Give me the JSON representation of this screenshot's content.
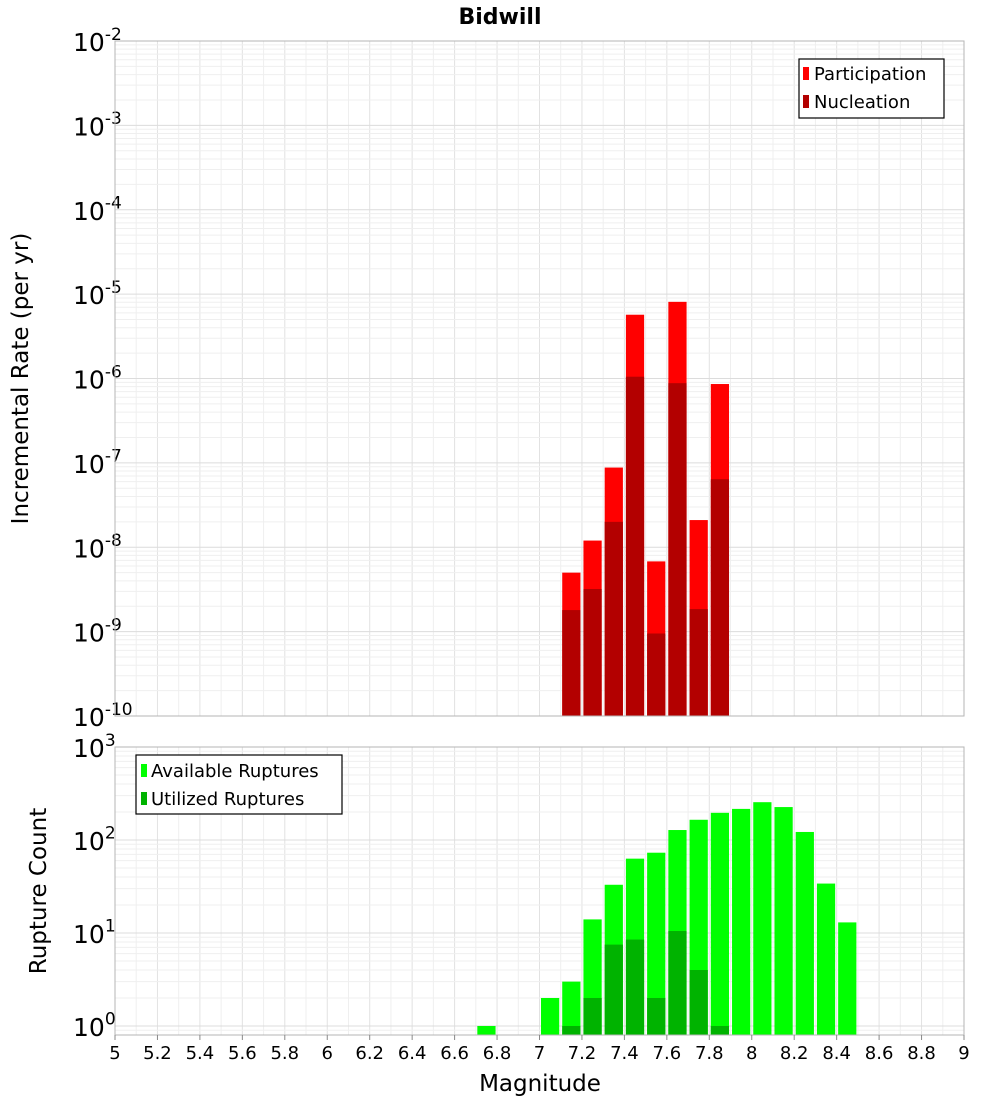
{
  "chart_data": [
    {
      "type": "bar",
      "title": "Bidwill",
      "xlabel": "Magnitude",
      "ylabel": "Incremental Rate (per yr)",
      "y_scale": "log",
      "ylim": [
        1e-10,
        0.01
      ],
      "xlim": [
        5,
        9
      ],
      "y_ticks": [
        "10^-10",
        "10^-9",
        "10^-8",
        "10^-7",
        "10^-6",
        "10^-5",
        "10^-4",
        "10^-3",
        "10^-2"
      ],
      "grid": true,
      "legend_position": "top-right",
      "x": [
        7.15,
        7.25,
        7.35,
        7.45,
        7.55,
        7.65,
        7.75,
        7.85
      ],
      "series": [
        {
          "name": "Participation",
          "color": "#ff0000",
          "values": [
            5e-09,
            1.2e-08,
            8.8e-08,
            5.7e-06,
            6.8e-09,
            8.1e-06,
            2.1e-08,
            8.6e-07
          ]
        },
        {
          "name": "Nucleation",
          "color": "#b30000",
          "values": [
            1.8e-09,
            3.2e-09,
            2e-08,
            1.05e-06,
            9.5e-10,
            8.8e-07,
            1.85e-09,
            6.4e-08
          ]
        }
      ]
    },
    {
      "type": "bar",
      "xlabel": "Magnitude",
      "ylabel": "Rupture Count",
      "y_scale": "log",
      "ylim": [
        0.8,
        1000
      ],
      "xlim": [
        5,
        9
      ],
      "y_ticks": [
        "10^0",
        "10^1",
        "10^2",
        "10^3"
      ],
      "x_ticks": [
        "5",
        "5.2",
        "5.4",
        "5.6",
        "5.8",
        "6",
        "6.2",
        "6.4",
        "6.6",
        "6.8",
        "7",
        "7.2",
        "7.4",
        "7.6",
        "7.8",
        "8",
        "8.2",
        "8.4",
        "8.6",
        "8.8",
        "9"
      ],
      "grid": true,
      "legend_position": "top-left",
      "series": [
        {
          "name": "Available Ruptures",
          "color": "#00ff00",
          "x": [
            6.75,
            7.05,
            7.15,
            7.25,
            7.35,
            7.45,
            7.55,
            7.65,
            7.75,
            7.85,
            7.95,
            8.05,
            8.15,
            8.25,
            8.35,
            8.45
          ],
          "values": [
            1,
            2,
            3,
            14,
            33,
            63,
            73,
            128,
            165,
            196,
            216,
            255,
            226,
            122,
            34,
            13
          ]
        },
        {
          "name": "Utilized Ruptures",
          "color": "#00b300",
          "x": [
            7.15,
            7.25,
            7.35,
            7.45,
            7.55,
            7.65,
            7.75,
            7.85
          ],
          "values": [
            1,
            2,
            7.5,
            8.5,
            2,
            10.5,
            4,
            1
          ]
        }
      ]
    }
  ]
}
